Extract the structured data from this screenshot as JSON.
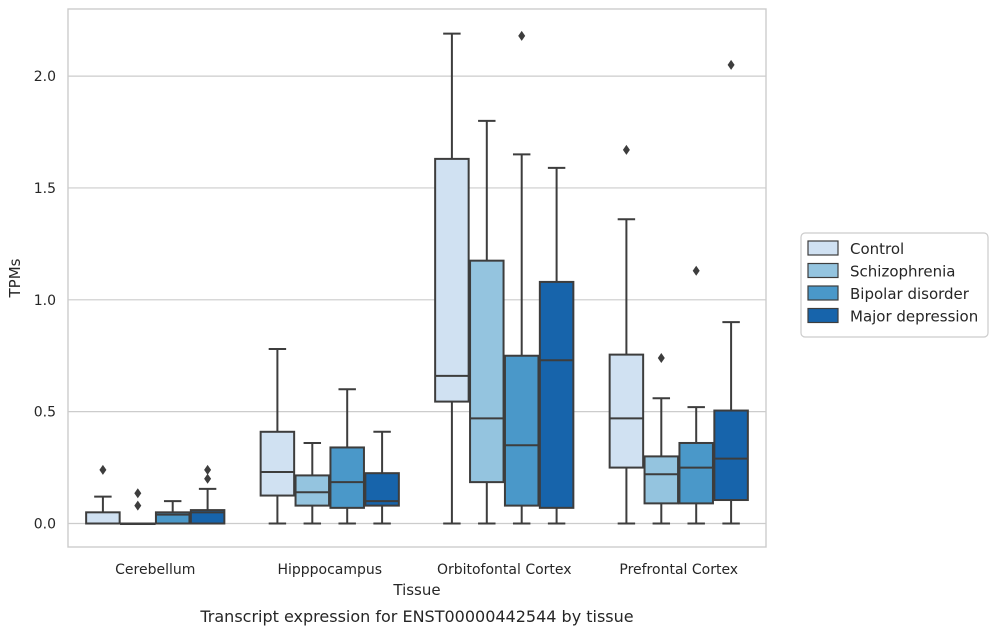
{
  "caption": "Transcript expression for ENST00000442544 by tissue",
  "chart_data": {
    "type": "box",
    "xlabel": "Tissue",
    "ylabel": "TPMs",
    "ylim": [
      -0.105,
      2.3
    ],
    "yticks": [
      0.0,
      0.5,
      1.0,
      1.5,
      2.0
    ],
    "ytick_labels": [
      "0.0",
      "0.5",
      "1.0",
      "1.5",
      "2.0"
    ],
    "grid": "horizontal",
    "legend_position": "right",
    "categories": [
      "Cerebellum",
      "Hipppocampus",
      "Orbitofontal Cortex",
      "Prefrontal Cortex"
    ],
    "series": [
      {
        "name": "Control",
        "color": "#d0e1f2",
        "boxes": [
          {
            "whislo": 0.0,
            "q1": 0.0,
            "med": 0.0,
            "q3": 0.05,
            "whishi": 0.12,
            "fliers": [
              0.24
            ]
          },
          {
            "whislo": 0.0,
            "q1": 0.125,
            "med": 0.23,
            "q3": 0.41,
            "whishi": 0.78,
            "fliers": []
          },
          {
            "whislo": 0.0,
            "q1": 0.545,
            "med": 0.66,
            "q3": 1.63,
            "whishi": 2.19,
            "fliers": []
          },
          {
            "whislo": 0.0,
            "q1": 0.25,
            "med": 0.47,
            "q3": 0.755,
            "whishi": 1.36,
            "fliers": [
              1.67
            ]
          }
        ]
      },
      {
        "name": "Schizophrenia",
        "color": "#94c4df",
        "boxes": [
          {
            "whislo": 0.0,
            "q1": 0.0,
            "med": 0.0,
            "q3": 0.0,
            "whishi": 0.0,
            "fliers": [
              0.08,
              0.135
            ]
          },
          {
            "whislo": 0.0,
            "q1": 0.08,
            "med": 0.14,
            "q3": 0.215,
            "whishi": 0.36,
            "fliers": []
          },
          {
            "whislo": 0.0,
            "q1": 0.185,
            "med": 0.47,
            "q3": 1.175,
            "whishi": 1.8,
            "fliers": []
          },
          {
            "whislo": 0.0,
            "q1": 0.09,
            "med": 0.22,
            "q3": 0.3,
            "whishi": 0.56,
            "fliers": [
              0.74
            ]
          }
        ]
      },
      {
        "name": "Bipolar disorder",
        "color": "#4a98c9",
        "boxes": [
          {
            "whislo": 0.0,
            "q1": 0.0,
            "med": 0.04,
            "q3": 0.05,
            "whishi": 0.1,
            "fliers": []
          },
          {
            "whislo": 0.0,
            "q1": 0.07,
            "med": 0.185,
            "q3": 0.34,
            "whishi": 0.6,
            "fliers": []
          },
          {
            "whislo": 0.0,
            "q1": 0.08,
            "med": 0.35,
            "q3": 0.75,
            "whishi": 1.65,
            "fliers": [
              2.18
            ]
          },
          {
            "whislo": 0.0,
            "q1": 0.09,
            "med": 0.25,
            "q3": 0.36,
            "whishi": 0.52,
            "fliers": [
              1.13
            ]
          }
        ]
      },
      {
        "name": "Major depression",
        "color": "#1764ab",
        "boxes": [
          {
            "whislo": 0.0,
            "q1": 0.0,
            "med": 0.05,
            "q3": 0.06,
            "whishi": 0.155,
            "fliers": [
              0.2,
              0.24
            ]
          },
          {
            "whislo": 0.0,
            "q1": 0.08,
            "med": 0.1,
            "q3": 0.225,
            "whishi": 0.41,
            "fliers": []
          },
          {
            "whislo": 0.0,
            "q1": 0.07,
            "med": 0.73,
            "q3": 1.08,
            "whishi": 1.59,
            "fliers": []
          },
          {
            "whislo": 0.0,
            "q1": 0.105,
            "med": 0.29,
            "q3": 0.505,
            "whishi": 0.9,
            "fliers": [
              2.05
            ]
          }
        ]
      }
    ]
  }
}
